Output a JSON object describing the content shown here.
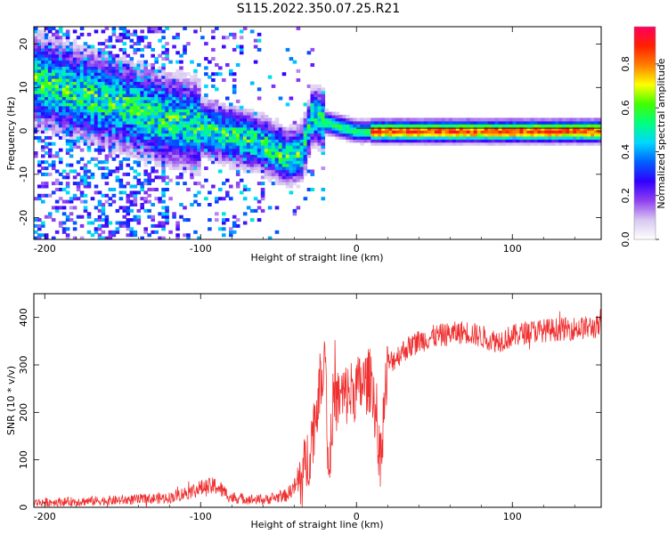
{
  "title": "S115.2022.350.07.25.R21",
  "chart_data": [
    {
      "type": "heatmap",
      "title": "S115.2022.350.07.25.R21",
      "xlabel": "Height of straight line (km)",
      "ylabel": "Frequency (Hz)",
      "xlim": [
        -207,
        157
      ],
      "ylim": [
        -25,
        24
      ],
      "xticks": [
        -200,
        -100,
        0,
        100
      ],
      "yticks": [
        -20,
        -10,
        0,
        10,
        20
      ],
      "colorbar": {
        "label": "Normalized spectral amplitude",
        "range": [
          0.0,
          0.97
        ],
        "ticks": [
          0.0,
          0.2,
          0.4,
          0.6,
          0.8
        ],
        "tick_labels": [
          "0.0",
          "0.2",
          "0.4",
          "0.6",
          "0.8"
        ],
        "colormap": [
          "#ffffff",
          "#d8c8f0",
          "#9040f0",
          "#3000ff",
          "#0060ff",
          "#00d8ff",
          "#00ff80",
          "#40ff00",
          "#ffff00",
          "#ff8000",
          "#ff2000",
          "#ff0060"
        ]
      },
      "ridge": {
        "x": [
          -207,
          -180,
          -150,
          -125,
          -100,
          -80,
          -60,
          -45,
          -35,
          -28,
          -20,
          -10,
          0,
          20,
          60,
          100,
          157
        ],
        "y": [
          12,
          9,
          6,
          3,
          1,
          -1,
          -3,
          -6,
          -5,
          4,
          2,
          1,
          0,
          0,
          0,
          0,
          0
        ]
      }
    },
    {
      "type": "line",
      "xlabel": "Height of straight line (km)",
      "ylabel": "SNR (10 * v/v)",
      "xlim": [
        -207,
        157
      ],
      "ylim": [
        0,
        450
      ],
      "xticks": [
        -200,
        -100,
        0,
        100
      ],
      "yticks": [
        0,
        100,
        200,
        300,
        400
      ],
      "color": "#f03030",
      "envelope": {
        "x": [
          -207,
          -150,
          -120,
          -100,
          -90,
          -80,
          -60,
          -45,
          -35,
          -30,
          -25,
          -20,
          -18,
          -15,
          -10,
          -5,
          0,
          10,
          15,
          20,
          30,
          40,
          50,
          70,
          90,
          110,
          130,
          157
        ],
        "y": [
          10,
          15,
          20,
          40,
          45,
          20,
          15,
          25,
          60,
          120,
          220,
          350,
          60,
          220,
          230,
          240,
          250,
          270,
          100,
          300,
          330,
          350,
          360,
          370,
          350,
          370,
          375,
          380
        ]
      }
    }
  ]
}
